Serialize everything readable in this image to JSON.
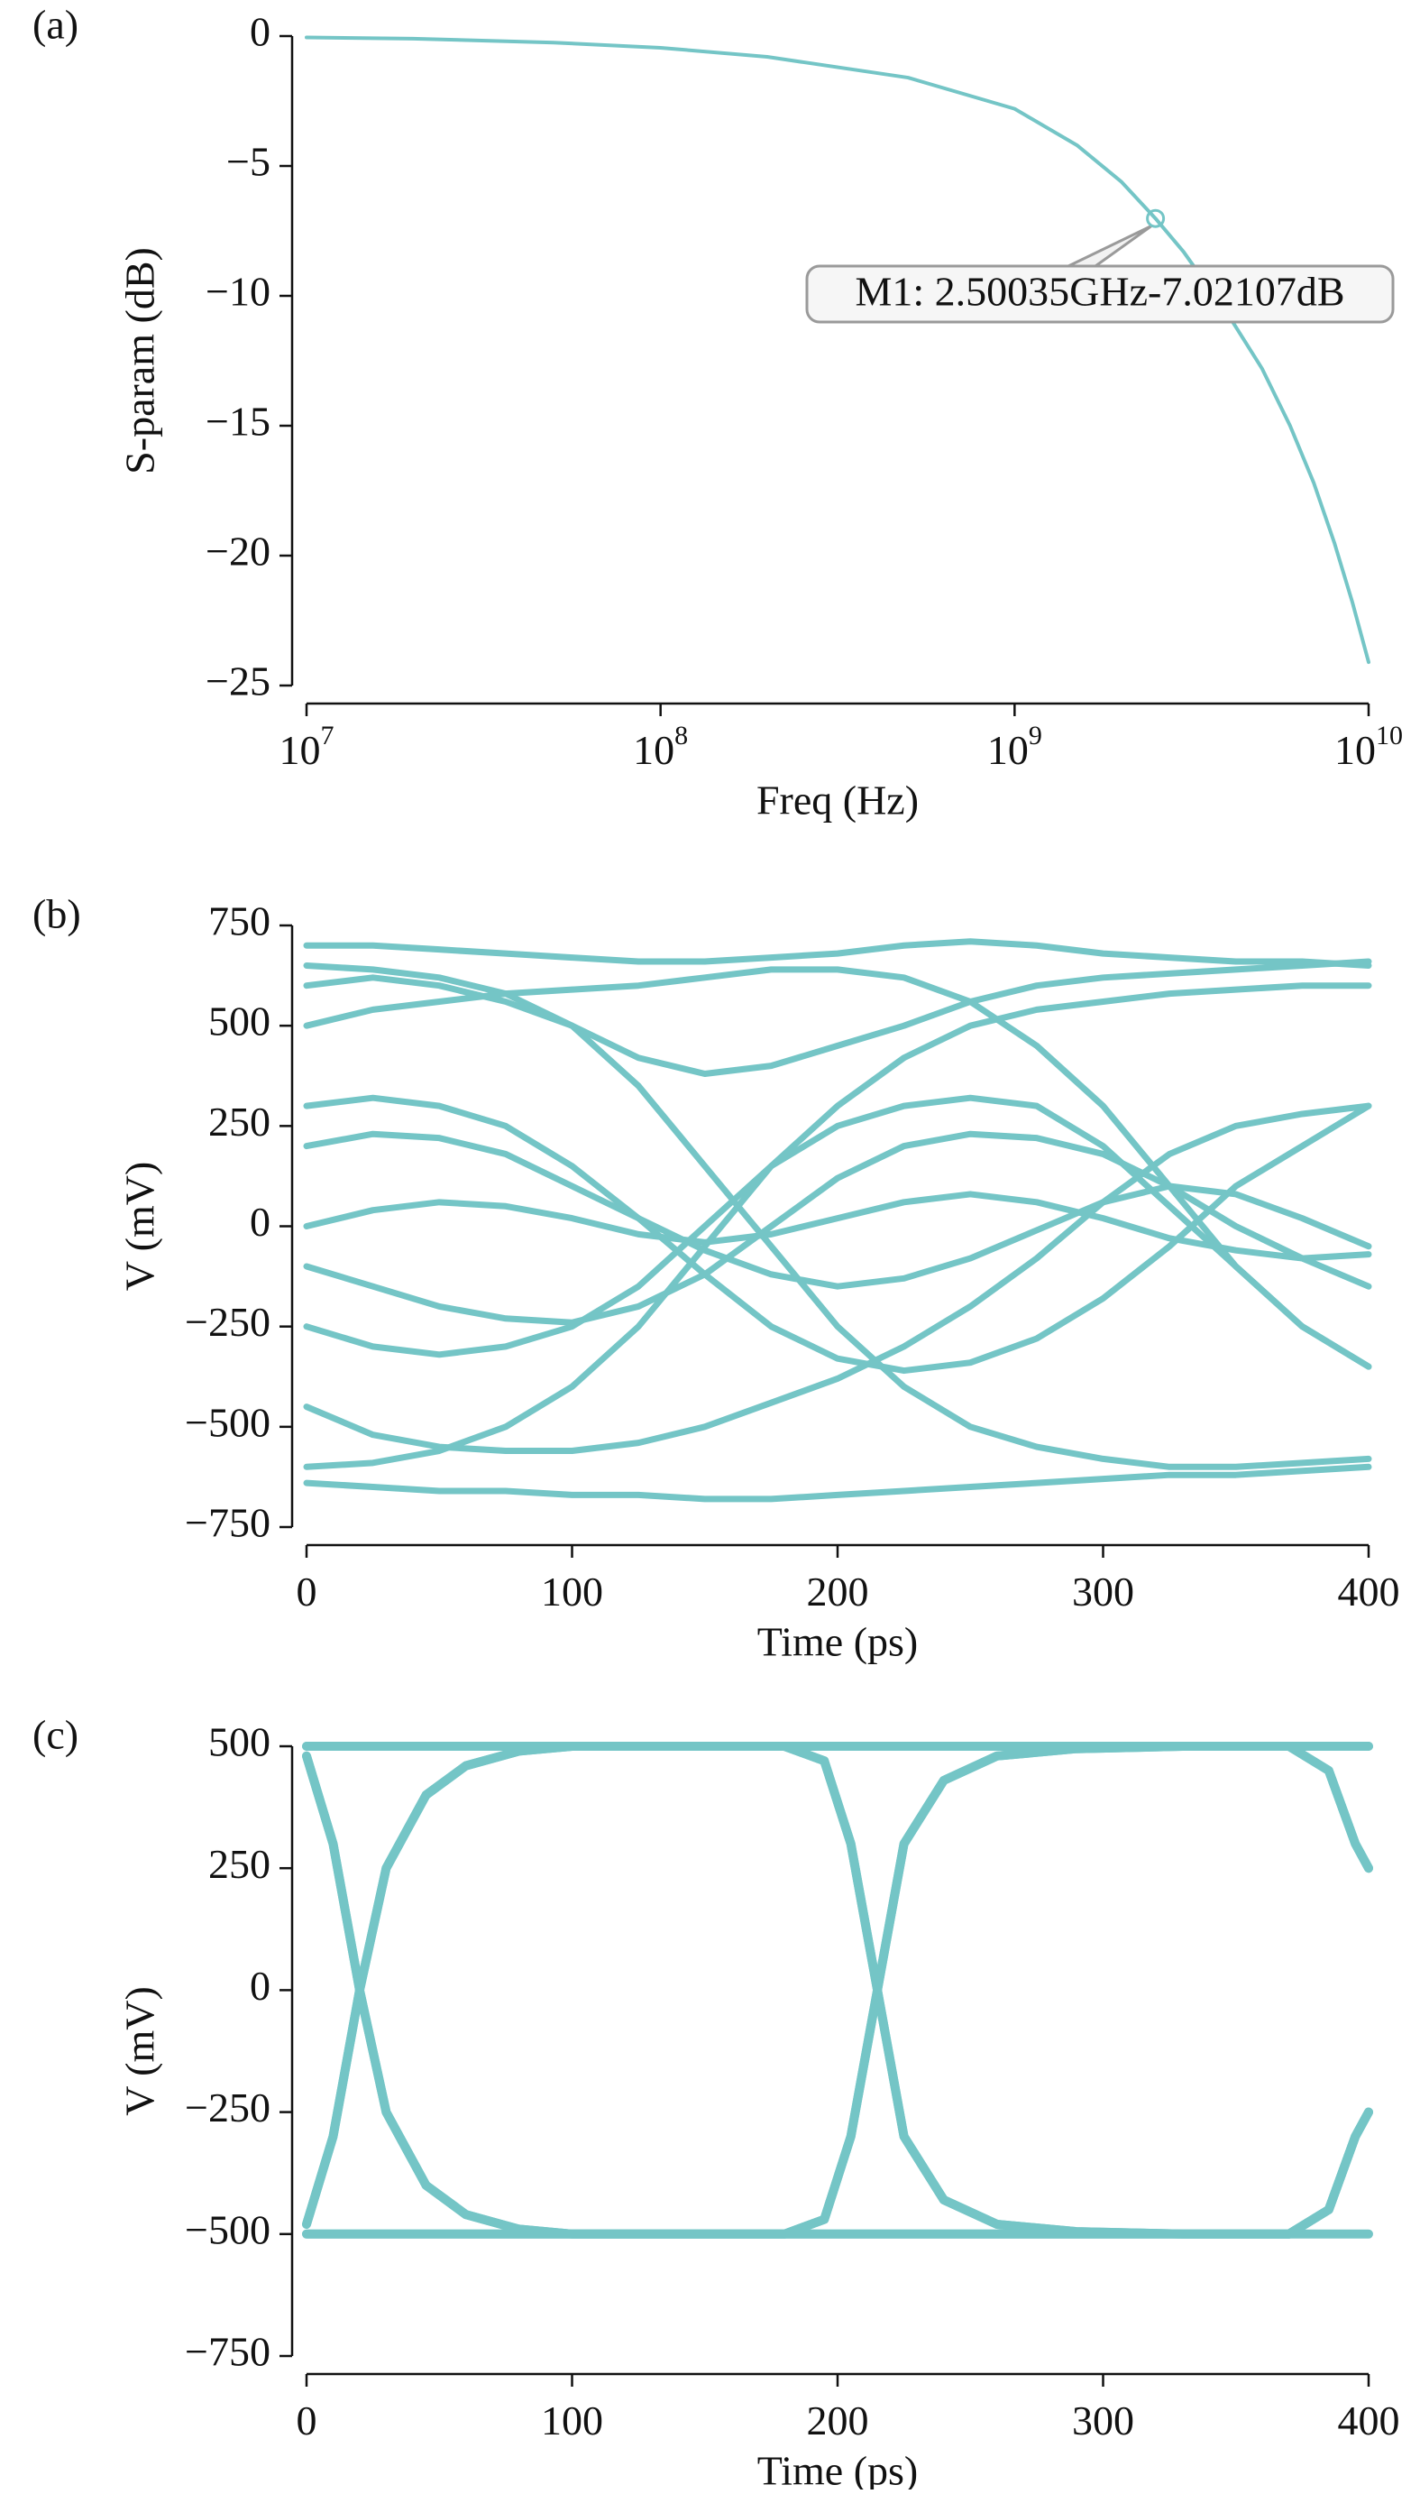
{
  "chart_data": [
    {
      "type": "line",
      "panel_label": "(a)",
      "xlabel": "Freq (Hz)",
      "ylabel": "S-param (dB)",
      "log_x": true,
      "x": [
        10000000,
        20000000,
        50000000,
        100000000,
        200000000,
        500000000,
        1000000000,
        1500000000,
        2000000000,
        2500350000,
        3000000000,
        4000000000,
        5000000000,
        6000000000,
        7000000000,
        8000000000,
        9000000000,
        10000000000
      ],
      "series": [
        {
          "color": "#74c5c6",
          "values": [
            -0.05,
            -0.1,
            -0.25,
            -0.45,
            -0.8,
            -1.6,
            -2.8,
            -4.2,
            -5.6,
            -7.02107,
            -8.3,
            -10.7,
            -12.8,
            -15.0,
            -17.2,
            -19.5,
            -21.8,
            -24.1
          ]
        }
      ],
      "xlim": [
        10000000,
        10000000000
      ],
      "ylim": [
        -25,
        0
      ],
      "xticks": [
        {
          "value": 10000000,
          "label": "10",
          "exponent": "7"
        },
        {
          "value": 100000000,
          "label": "10",
          "exponent": "8"
        },
        {
          "value": 1000000000,
          "label": "10",
          "exponent": "9"
        },
        {
          "value": 10000000000,
          "label": "10",
          "exponent": "10"
        }
      ],
      "yticks": [
        0,
        {
          "value": -5,
          "label": "−5"
        },
        {
          "value": -10,
          "label": "−10"
        },
        {
          "value": -15,
          "label": "−15"
        },
        {
          "value": -20,
          "label": "−20"
        },
        {
          "value": -25,
          "label": "−25"
        }
      ],
      "annotation": {
        "text": "M1: 2.50035GHz-7.02107dB",
        "x": 2500350000,
        "y": -7.02107
      }
    },
    {
      "type": "line",
      "panel_label": "(b)",
      "xlabel": "Time (ps)",
      "ylabel": "V (mV)",
      "x": [
        0,
        25,
        50,
        75,
        100,
        125,
        150,
        175,
        200,
        225,
        250,
        275,
        300,
        325,
        350,
        375,
        400
      ],
      "series": [
        {
          "color": "#74c5c6",
          "values": [
            650,
            640,
            620,
            580,
            500,
            350,
            150,
            -50,
            -250,
            -400,
            -500,
            -550,
            -580,
            -600,
            -600,
            -590,
            -580
          ]
        },
        {
          "color": "#74c5c6",
          "values": [
            -600,
            -590,
            -560,
            -500,
            -400,
            -250,
            -50,
            150,
            300,
            420,
            500,
            540,
            560,
            580,
            590,
            600,
            600
          ]
        },
        {
          "color": "#74c5c6",
          "values": [
            200,
            230,
            220,
            180,
            100,
            20,
            -60,
            -120,
            -150,
            -130,
            -80,
            -10,
            60,
            100,
            80,
            20,
            -50
          ]
        },
        {
          "color": "#74c5c6",
          "values": [
            0,
            40,
            60,
            50,
            20,
            -20,
            -40,
            -20,
            20,
            60,
            80,
            60,
            20,
            -30,
            -60,
            -80,
            -70
          ]
        },
        {
          "color": "#74c5c6",
          "values": [
            700,
            700,
            690,
            680,
            670,
            660,
            660,
            670,
            680,
            700,
            710,
            700,
            680,
            670,
            660,
            660,
            650
          ]
        },
        {
          "color": "#74c5c6",
          "values": [
            -640,
            -650,
            -660,
            -660,
            -670,
            -670,
            -680,
            -680,
            -670,
            -660,
            -650,
            -640,
            -630,
            -620,
            -620,
            -610,
            -600
          ]
        },
        {
          "color": "#74c5c6",
          "values": [
            -250,
            -300,
            -320,
            -300,
            -250,
            -150,
            0,
            150,
            250,
            300,
            320,
            300,
            200,
            50,
            -100,
            -250,
            -350
          ]
        },
        {
          "color": "#74c5c6",
          "values": [
            300,
            320,
            300,
            250,
            150,
            20,
            -120,
            -250,
            -330,
            -360,
            -340,
            -280,
            -180,
            -50,
            100,
            200,
            300
          ]
        },
        {
          "color": "#74c5c6",
          "values": [
            -450,
            -520,
            -550,
            -560,
            -560,
            -540,
            -500,
            -440,
            -380,
            -300,
            -200,
            -80,
            60,
            180,
            250,
            280,
            300
          ]
        },
        {
          "color": "#74c5c6",
          "values": [
            500,
            540,
            560,
            580,
            590,
            600,
            620,
            640,
            640,
            620,
            560,
            450,
            300,
            100,
            -100,
            -250,
            -350
          ]
        },
        {
          "color": "#74c5c6",
          "values": [
            -100,
            -150,
            -200,
            -230,
            -240,
            -200,
            -120,
            0,
            120,
            200,
            230,
            220,
            180,
            100,
            0,
            -80,
            -150
          ]
        },
        {
          "color": "#74c5c6",
          "values": [
            600,
            620,
            600,
            560,
            500,
            420,
            380,
            400,
            450,
            500,
            560,
            600,
            620,
            630,
            640,
            650,
            660
          ]
        }
      ],
      "xlim": [
        0,
        400
      ],
      "ylim": [
        -750,
        750
      ],
      "xticks": [
        0,
        100,
        200,
        300,
        400
      ],
      "yticks": [
        750,
        500,
        250,
        0,
        {
          "value": -250,
          "label": "−250"
        },
        {
          "value": -500,
          "label": "−500"
        },
        {
          "value": -750,
          "label": "−750"
        }
      ]
    },
    {
      "type": "line",
      "panel_label": "(c)",
      "xlabel": "Time (ps)",
      "ylabel": "V (mV)",
      "x": [
        0,
        10,
        20,
        30,
        45,
        60,
        80,
        100,
        140,
        180,
        195,
        205,
        215,
        225,
        240,
        260,
        290,
        330,
        370,
        385,
        395,
        400
      ],
      "series": [
        {
          "color": "#74c5c6",
          "values": [
            -480,
            -300,
            0,
            250,
            400,
            460,
            490,
            500,
            500,
            500,
            470,
            300,
            0,
            -300,
            -430,
            -480,
            -495,
            -500,
            -500,
            -450,
            -300,
            -250
          ]
        },
        {
          "color": "#74c5c6",
          "values": [
            480,
            300,
            0,
            -250,
            -400,
            -460,
            -490,
            -500,
            -500,
            -500,
            -470,
            -300,
            0,
            300,
            430,
            480,
            495,
            500,
            500,
            450,
            300,
            250
          ]
        },
        {
          "color": "#74c5c6",
          "values": [
            500,
            500,
            500,
            500,
            500,
            500,
            500,
            500,
            500,
            500,
            500,
            500,
            500,
            500,
            500,
            500,
            500,
            500,
            500,
            450,
            300,
            250
          ]
        },
        {
          "color": "#74c5c6",
          "values": [
            -500,
            -500,
            -500,
            -500,
            -500,
            -500,
            -500,
            -500,
            -500,
            -500,
            -470,
            -300,
            0,
            300,
            430,
            480,
            495,
            500,
            500,
            500,
            500,
            500
          ]
        },
        {
          "color": "#74c5c6",
          "values": [
            -480,
            -300,
            0,
            250,
            400,
            460,
            490,
            500,
            500,
            500,
            500,
            500,
            500,
            500,
            500,
            500,
            500,
            500,
            500,
            500,
            500,
            500
          ]
        },
        {
          "color": "#74c5c6",
          "values": [
            480,
            300,
            0,
            -250,
            -400,
            -460,
            -490,
            -500,
            -500,
            -500,
            -500,
            -500,
            -500,
            -500,
            -500,
            -500,
            -500,
            -500,
            -500,
            -500,
            -500,
            -500
          ]
        },
        {
          "color": "#74c5c6",
          "values": [
            500,
            500,
            500,
            500,
            500,
            500,
            500,
            500,
            500,
            500,
            470,
            300,
            0,
            -300,
            -430,
            -480,
            -495,
            -500,
            -500,
            -450,
            -300,
            -250
          ]
        },
        {
          "color": "#74c5c6",
          "values": [
            -500,
            -500,
            -500,
            -500,
            -500,
            -500,
            -500,
            -500,
            -500,
            -500,
            -500,
            -500,
            -500,
            -500,
            -500,
            -500,
            -500,
            -500,
            -500,
            -450,
            -300,
            -250
          ]
        }
      ],
      "xlim": [
        0,
        400
      ],
      "ylim": [
        -750,
        500
      ],
      "xticks": [
        0,
        100,
        200,
        300,
        400
      ],
      "yticks": [
        500,
        250,
        0,
        {
          "value": -250,
          "label": "−250"
        },
        {
          "value": -500,
          "label": "−500"
        },
        {
          "value": -750,
          "label": "−750"
        }
      ]
    }
  ]
}
